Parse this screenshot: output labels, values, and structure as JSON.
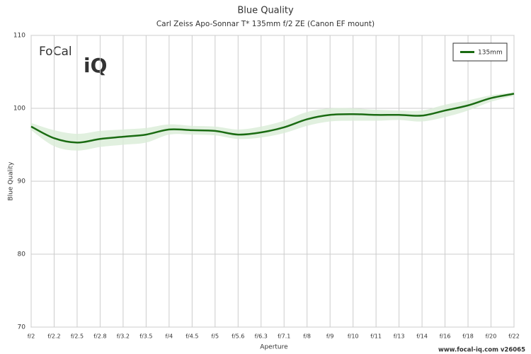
{
  "chart_data": {
    "type": "line",
    "title": "Blue Quality",
    "subtitle": "Carl Zeiss Apo-Sonnar T* 135mm f/2 ZE (Canon EF mount)",
    "x_label": "Aperture",
    "y_label": "Blue Quality",
    "logo": [
      "FoCal",
      "iQ"
    ],
    "footer": "www.focal-iq.com  v26065",
    "categories": [
      "f/2",
      "f/2.2",
      "f/2.5",
      "f/2.8",
      "f/3.2",
      "f/3.5",
      "f/4",
      "f/4.5",
      "f/5",
      "f/5.6",
      "f/6.3",
      "f/7.1",
      "f/8",
      "f/9",
      "f/10",
      "f/11",
      "f/13",
      "f/14",
      "f/16",
      "f/18",
      "f/20",
      "f/22"
    ],
    "series": [
      {
        "name": "135mm",
        "color": "#1a6b12",
        "values": [
          97.5,
          95.9,
          95.3,
          95.8,
          96.1,
          96.4,
          97.1,
          97.0,
          96.9,
          96.4,
          96.7,
          97.4,
          98.5,
          99.1,
          99.2,
          99.1,
          99.1,
          99.0,
          99.7,
          100.4,
          101.4,
          102.0
        ],
        "band_high": [
          98.0,
          97.0,
          96.5,
          96.9,
          97.1,
          97.3,
          97.8,
          97.6,
          97.5,
          97.1,
          97.5,
          98.3,
          99.5,
          100.0,
          100.0,
          99.8,
          99.7,
          99.7,
          100.5,
          101.1,
          101.8,
          102.2
        ],
        "band_low": [
          97.0,
          94.8,
          94.2,
          94.7,
          95.0,
          95.3,
          96.4,
          96.4,
          96.3,
          95.8,
          96.0,
          96.6,
          97.6,
          98.2,
          98.3,
          98.3,
          98.4,
          98.2,
          98.8,
          99.7,
          100.9,
          101.7
        ],
        "band_color": "#d9ecd7"
      }
    ],
    "ylim": [
      70,
      110
    ],
    "yticks": [
      70,
      80,
      90,
      100,
      110
    ],
    "grid": true,
    "legend": "upper right"
  }
}
